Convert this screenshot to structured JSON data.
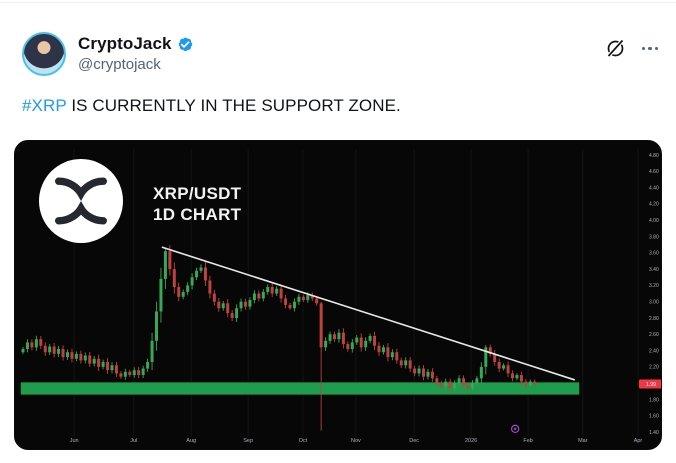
{
  "tweet": {
    "display_name": "CryptoJack",
    "handle": "@cryptojack",
    "body_hashtag": "#XRP",
    "body_rest": " IS CURRENTLY IN THE SUPPORT ZONE.",
    "icons": {
      "verified": "verified-badge-icon",
      "grok": "grok-icon",
      "more": "more-menu-icon",
      "xrp_logo": "xrp-logo"
    },
    "colors": {
      "accent_blue": "#1d9bf0",
      "text_primary": "#0f1419",
      "text_secondary": "#536471"
    }
  },
  "chart_data": {
    "type": "candlestick",
    "title": "XRP/USDT",
    "subtitle": "1D CHART",
    "timeframe": "1D",
    "current_price": "1.99",
    "x_axis": {
      "labels": [
        "Jun",
        "Jul",
        "Aug",
        "Sep",
        "Oct",
        "Nov",
        "Dec",
        "2026",
        "Feb",
        "Mar",
        "Apr"
      ],
      "positions": [
        11.5,
        24.9,
        37.8,
        50.6,
        62.9,
        74.8,
        87.9,
        100.7,
        113.5,
        125.8,
        138.2
      ]
    },
    "y_axis": {
      "min": 1.4,
      "max": 4.8,
      "step": 0.2
    },
    "support_zone": {
      "top": 2.01,
      "bottom": 1.86,
      "start_index": -0.5,
      "end_index": 125
    },
    "trendline": {
      "from": {
        "index": 31.2,
        "price": 3.67
      },
      "to": {
        "index": 124,
        "price": 2.04
      }
    },
    "closes": [
      2.42,
      2.5,
      2.44,
      2.54,
      2.46,
      2.38,
      2.45,
      2.36,
      2.42,
      2.32,
      2.38,
      2.3,
      2.36,
      2.28,
      2.34,
      2.24,
      2.3,
      2.2,
      2.26,
      2.16,
      2.22,
      2.12,
      2.08,
      2.14,
      2.1,
      2.16,
      2.1,
      2.18,
      2.26,
      2.52,
      2.88,
      3.28,
      3.62,
      3.4,
      3.18,
      3.06,
      3.12,
      3.2,
      3.3,
      3.38,
      3.42,
      3.26,
      3.1,
      3.0,
      2.92,
      2.98,
      2.86,
      2.8,
      2.92,
      3.0,
      2.94,
      3.02,
      3.1,
      3.04,
      3.12,
      3.18,
      3.1,
      3.16,
      3.04,
      2.96,
      2.92,
      3.0,
      3.06,
      3.02,
      3.08,
      3.04,
      2.98,
      2.44,
      2.52,
      2.6,
      2.54,
      2.62,
      2.48,
      2.42,
      2.5,
      2.56,
      2.44,
      2.52,
      2.58,
      2.46,
      2.38,
      2.44,
      2.32,
      2.38,
      2.28,
      2.22,
      2.28,
      2.18,
      2.12,
      2.18,
      2.08,
      2.14,
      2.06,
      2.0,
      1.96,
      2.02,
      1.94,
      2.0,
      2.06,
      1.98,
      1.94,
      2.0,
      2.06,
      2.2,
      2.44,
      2.36,
      2.26,
      2.18,
      2.22,
      2.12,
      2.06,
      2.1,
      2.02,
      1.98,
      2.02,
      1.99
    ],
    "wick_overrides": {
      "32": {
        "high": 3.66
      },
      "40": {
        "high": 3.46
      },
      "67": {
        "high": 3.0,
        "low": 1.42
      },
      "104": {
        "high": 2.47
      }
    },
    "event_marker": {
      "index": 110.6,
      "price": 1.44
    },
    "colors": {
      "background": "#070707",
      "candle_up": "#36a857",
      "candle_down": "#c0423c",
      "support_green": "#1f9c4d",
      "trendline": "#e8e8e8",
      "price_tag_red": "#f23645",
      "axis_text": "#aeb2bb",
      "grid": "#141414",
      "marker_purple": "#9b4dca"
    }
  }
}
